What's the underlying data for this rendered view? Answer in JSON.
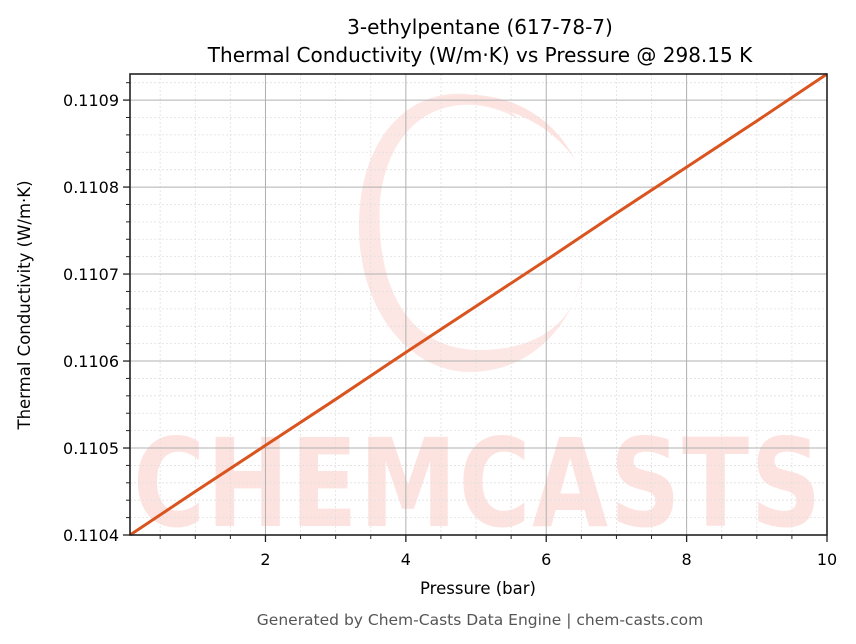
{
  "chart_data": {
    "type": "line",
    "title": "3-ethylpentane (617-78-7)",
    "subtitle": "Thermal Conductivity (W/m·K) vs Pressure @ 298.15 K",
    "xlabel": "Pressure (bar)",
    "ylabel": "Thermal Conductivity (W/m·K)",
    "xlim": [
      0.07,
      10
    ],
    "ylim": [
      0.1104,
      0.11093
    ],
    "x_ticks": [
      2,
      4,
      6,
      8,
      10
    ],
    "x_tick_labels": [
      "2",
      "4",
      "6",
      "8",
      "10"
    ],
    "y_ticks": [
      0.1104,
      0.1105,
      0.1106,
      0.1107,
      0.1108,
      0.1109
    ],
    "y_tick_labels": [
      "0.1104",
      "0.1105",
      "0.1106",
      "0.1107",
      "0.1108",
      "0.1109"
    ],
    "grid": true,
    "minor_grid": true,
    "legend": null,
    "series": [
      {
        "name": "Thermal Conductivity",
        "color": "#d9541e",
        "x": [
          0.07,
          1,
          2,
          3,
          4,
          5,
          6,
          7,
          8,
          9,
          10
        ],
        "y": [
          0.1104,
          0.11045,
          0.110503,
          0.110556,
          0.11061,
          0.110663,
          0.110716,
          0.11077,
          0.110823,
          0.110876,
          0.11093
        ]
      }
    ]
  },
  "watermark": {
    "text": "CHEMCASTS",
    "color": "#fde3e0"
  },
  "footer": {
    "text": "Generated by Chem-Casts Data Engine | chem-casts.com"
  },
  "colors": {
    "line": "#d9541e",
    "major_grid": "#b0b0b0",
    "minor_grid": "#e0e0e0",
    "axes": "#222222",
    "footer_text": "#555555"
  }
}
